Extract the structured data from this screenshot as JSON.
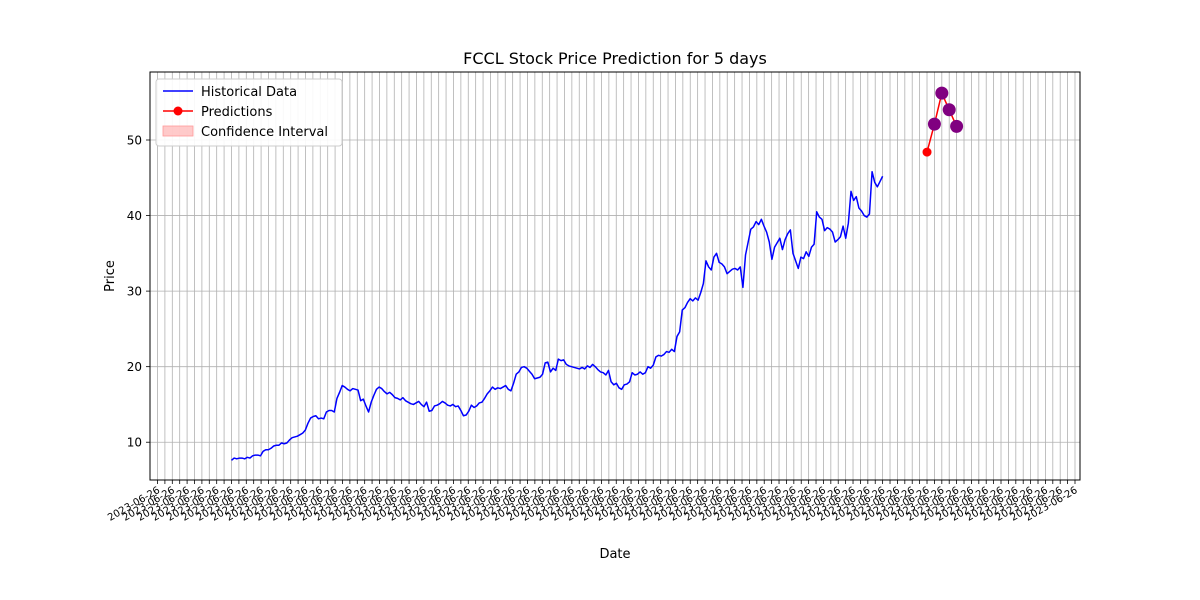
{
  "chart_data": {
    "type": "line",
    "title": "FCCL Stock Price Prediction for 5 days",
    "xlabel": "Date",
    "ylabel": "Price",
    "ylim": [
      5.0,
      59.0
    ],
    "y_ticks": [
      10,
      20,
      30,
      40,
      50
    ],
    "grid": true,
    "legend_position": "top-left",
    "colors": {
      "historical": "#0000ff",
      "predictions": "#ff0000",
      "confidence": "#ffb3b3",
      "prediction_markers": "#800080"
    },
    "legend": [
      "Historical Data",
      "Predictions",
      "Confidence Interval"
    ],
    "x_ticks": {
      "count": 125,
      "note_first_label": "2023-06-26",
      "labels_overlap": true
    },
    "series": [
      {
        "name": "Historical Data",
        "x_index_start": 10,
        "values": [
          7.6,
          7.9,
          7.8,
          7.9,
          7.9,
          7.8,
          8.0,
          7.9,
          8.2,
          8.3,
          8.3,
          8.2,
          8.8,
          9.0,
          9.0,
          9.2,
          9.5,
          9.6,
          9.6,
          9.9,
          9.8,
          9.9,
          10.3,
          10.6,
          10.7,
          10.8,
          11.0,
          11.2,
          11.6,
          12.5,
          13.2,
          13.4,
          13.5,
          13.1,
          13.2,
          13.1,
          14.0,
          14.2,
          14.2,
          14.0,
          15.8,
          16.6,
          17.5,
          17.3,
          17.0,
          16.8,
          17.1,
          17.0,
          16.9,
          15.5,
          15.7,
          14.8,
          14.0,
          15.3,
          16.2,
          17.0,
          17.3,
          17.1,
          16.7,
          16.4,
          16.6,
          16.3,
          15.9,
          15.8,
          15.6,
          15.9,
          15.5,
          15.3,
          15.1,
          15.0,
          15.2,
          15.4,
          15.0,
          14.7,
          15.3,
          14.1,
          14.2,
          14.8,
          14.9,
          15.1,
          15.4,
          15.2,
          14.9,
          14.8,
          15.0,
          14.7,
          14.8,
          14.2,
          13.5,
          13.6,
          14.1,
          14.9,
          14.6,
          14.8,
          15.2,
          15.3,
          15.8,
          16.4,
          16.8,
          17.3,
          17.0,
          17.2,
          17.1,
          17.3,
          17.5,
          17.0,
          16.8,
          17.8,
          19.0,
          19.3,
          19.9,
          20.0,
          19.8,
          19.4,
          19.0,
          18.4,
          18.5,
          18.6,
          19.0,
          20.5,
          20.6,
          19.3,
          19.8,
          19.5,
          21.0,
          20.8,
          20.9,
          20.3,
          20.1,
          20.0,
          19.9,
          19.8,
          19.7,
          19.9,
          19.7,
          20.1,
          19.9,
          20.3,
          20.0,
          19.6,
          19.3,
          19.2,
          18.9,
          19.5,
          18.0,
          17.6,
          17.8,
          17.2,
          17.0,
          17.6,
          17.7,
          18.0,
          19.2,
          18.9,
          19.0,
          19.3,
          19.0,
          19.2,
          20.0,
          19.8,
          20.2,
          21.3,
          21.5,
          21.4,
          21.6,
          22.0,
          21.9,
          22.3,
          22.0,
          24.0,
          24.6,
          27.5,
          27.8,
          28.5,
          29.0,
          28.7,
          29.1,
          28.8,
          29.8,
          31.0,
          34.0,
          33.2,
          32.8,
          34.5,
          35.0,
          33.8,
          33.6,
          33.2,
          32.3,
          32.6,
          32.9,
          33.0,
          32.8,
          33.2,
          30.5,
          34.8,
          36.5,
          38.2,
          38.5,
          39.2,
          38.8,
          39.5,
          38.6,
          37.8,
          36.5,
          34.2,
          35.8,
          36.4,
          37.0,
          35.5,
          36.8,
          37.6,
          38.1,
          35.0,
          34.0,
          33.0,
          34.5,
          34.3,
          35.2,
          34.6,
          35.8,
          36.2,
          40.5,
          39.8,
          39.5,
          38.0,
          38.4,
          38.2,
          37.8,
          36.5,
          36.8,
          37.2,
          38.6,
          37.0,
          39.0,
          43.2,
          42.0,
          42.5,
          41.0,
          40.6,
          40.0,
          39.8,
          40.2,
          45.8,
          44.4,
          43.8,
          44.5,
          45.2
        ],
        "x_index_end": 98
      },
      {
        "name": "Predictions",
        "x_index": [
          104,
          105,
          106,
          107,
          108
        ],
        "values": [
          48.4,
          52.1,
          56.2,
          54.0,
          51.8
        ]
      }
    ],
    "prediction_marker_values": [
      52.1,
      56.2,
      54.0,
      51.8
    ]
  }
}
